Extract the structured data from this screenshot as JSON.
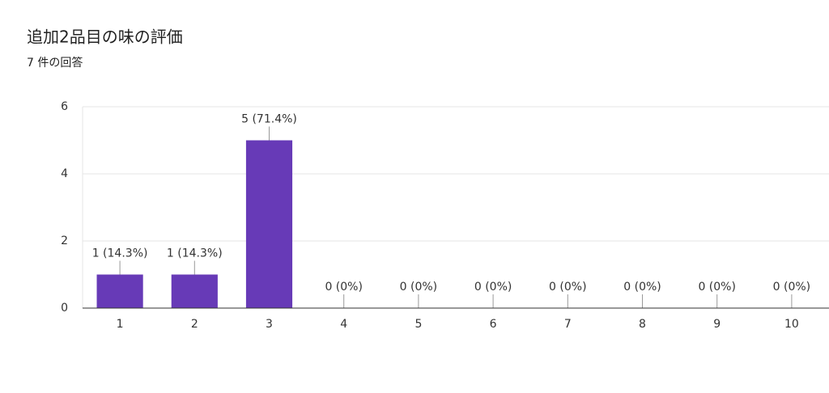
{
  "chart_data": {
    "type": "bar",
    "title": "追加2品目の味の評価",
    "subtitle": "7 件の回答",
    "categories": [
      "1",
      "2",
      "3",
      "4",
      "5",
      "6",
      "7",
      "8",
      "9",
      "10"
    ],
    "values": [
      1,
      1,
      5,
      0,
      0,
      0,
      0,
      0,
      0,
      0
    ],
    "value_labels": [
      "1 (14.3%)",
      "1 (14.3%)",
      "5 (71.4%)",
      "0 (0%)",
      "0 (0%)",
      "0 (0%)",
      "0 (0%)",
      "0 (0%)",
      "0 (0%)",
      "0 (0%)"
    ],
    "color": "#673ab7",
    "ylim": [
      0,
      6
    ],
    "yticks": [
      0,
      2,
      4,
      6
    ],
    "grid": true
  }
}
